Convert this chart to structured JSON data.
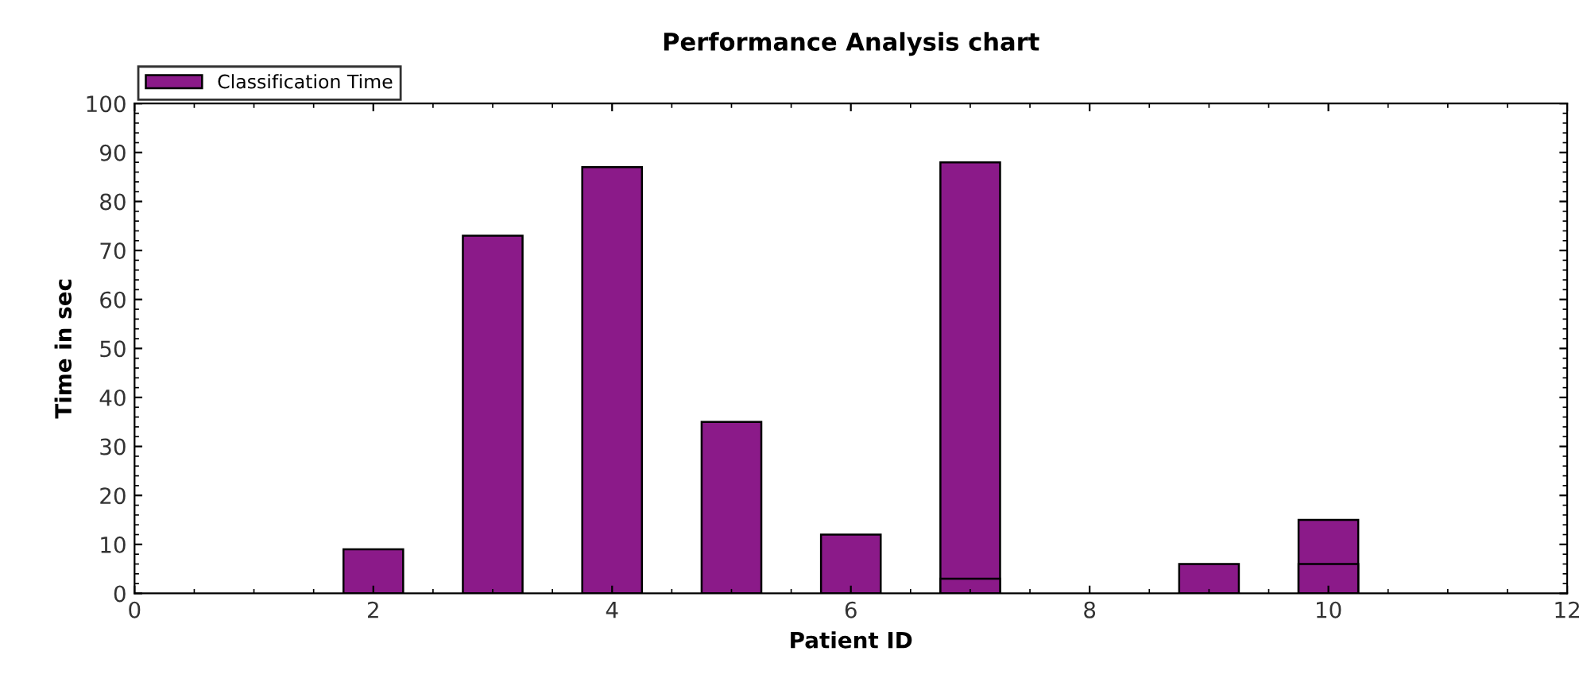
{
  "chart_data": {
    "type": "bar",
    "title": "Performance Analysis chart",
    "xlabel": "Patient ID",
    "ylabel": "Time in sec",
    "x": [
      2,
      3,
      4,
      5,
      6,
      7,
      9,
      10
    ],
    "series": [
      {
        "name": "Classification Time",
        "color": "#8b1a89",
        "values": [
          9,
          73,
          87,
          35,
          12,
          88,
          6,
          15
        ]
      },
      {
        "color": "#8b1a89",
        "x": [
          7,
          10
        ],
        "values": [
          3,
          6
        ]
      }
    ],
    "xlim": [
      0,
      12
    ],
    "xticks": [
      0,
      2,
      4,
      6,
      8,
      10,
      12
    ],
    "ylim": [
      0,
      100
    ],
    "yticks": [
      0,
      10,
      20,
      30,
      40,
      50,
      60,
      70,
      80,
      90,
      100
    ],
    "grid": false,
    "legend": "top left"
  }
}
